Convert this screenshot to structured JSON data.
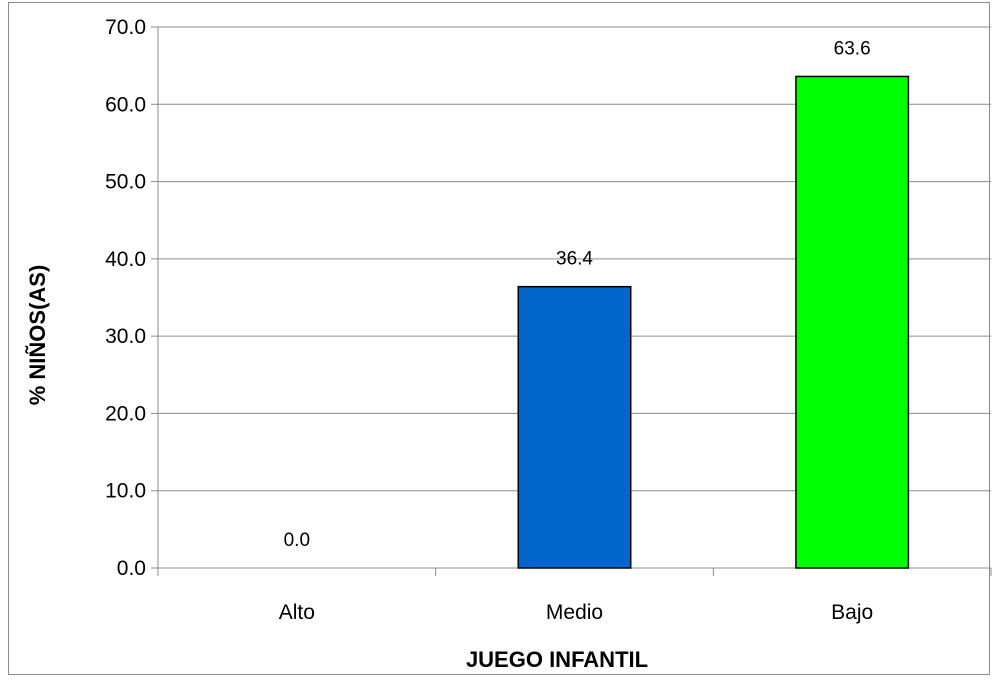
{
  "chart_data": {
    "type": "bar",
    "categories": [
      "Alto",
      "Medio",
      "Bajo"
    ],
    "values": [
      0.0,
      36.4,
      63.6
    ],
    "value_labels": [
      "0.0",
      "36.4",
      "63.6"
    ],
    "bar_colors": [
      "#808080",
      "#0066cc",
      "#00ff00"
    ],
    "xlabel": "JUEGO INFANTIL",
    "ylabel": "% NIÑOS(AS)",
    "ylim": [
      0,
      70
    ],
    "yticks": [
      0,
      10,
      20,
      30,
      40,
      50,
      60,
      70
    ],
    "ytick_labels": [
      "0.0",
      "10.0",
      "20.0",
      "30.0",
      "40.0",
      "50.0",
      "60.0",
      "70.0"
    ],
    "grid": true,
    "legend": false
  }
}
